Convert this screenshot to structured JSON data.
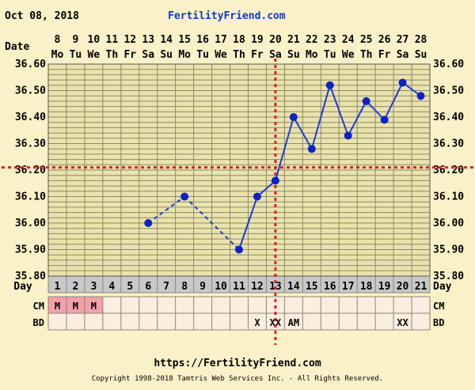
{
  "header": {
    "date": "Oct 08, 2018",
    "site": "FertilityFriend.com"
  },
  "footer": {
    "url": "https://FertilityFriend.com",
    "copyright": "Copyright 1998-2018 Tamtris Web Services Inc. - All Rights Reserved."
  },
  "chart_data": {
    "type": "line",
    "ylim": [
      35.8,
      36.6
    ],
    "y_ticks": [
      "36.60",
      "36.50",
      "36.40",
      "36.30",
      "36.20",
      "36.10",
      "36.00",
      "35.90",
      "35.80"
    ],
    "row_labels": {
      "date": "Date",
      "day": "Day",
      "cm": "CM",
      "bd": "BD"
    },
    "dates": [
      "8",
      "9",
      "10",
      "11",
      "12",
      "13",
      "14",
      "15",
      "16",
      "17",
      "18",
      "19",
      "20",
      "21",
      "22",
      "23",
      "24",
      "25",
      "26",
      "27",
      "28"
    ],
    "weekdays": [
      "Mo",
      "Tu",
      "We",
      "Th",
      "Fr",
      "Sa",
      "Su",
      "Mo",
      "Tu",
      "We",
      "Th",
      "Fr",
      "Sa",
      "Su",
      "Mo",
      "Tu",
      "We",
      "Th",
      "Fr",
      "Sa",
      "Su"
    ],
    "days": [
      1,
      2,
      3,
      4,
      5,
      6,
      7,
      8,
      9,
      10,
      11,
      12,
      13,
      14,
      15,
      16,
      17,
      18,
      19,
      20,
      21
    ],
    "temperatures": [
      null,
      null,
      null,
      null,
      null,
      36.0,
      null,
      36.1,
      null,
      null,
      35.9,
      36.1,
      36.16,
      36.4,
      36.28,
      36.52,
      36.33,
      36.46,
      36.39,
      36.53,
      36.48
    ],
    "dashed_segments": [
      [
        6,
        8
      ],
      [
        8,
        11
      ]
    ],
    "coverline": 36.21,
    "ovulation_day": 13,
    "cm": [
      "M",
      "M",
      "M",
      "",
      "",
      "",
      "",
      "",
      "",
      "",
      "",
      "",
      "",
      "",
      "",
      "",
      "",
      "",
      "",
      "",
      ""
    ],
    "bd": [
      "",
      "",
      "",
      "",
      "",
      "",
      "",
      "",
      "",
      "",
      "",
      "X",
      "XX",
      "AM",
      "",
      "",
      "",
      "",
      "",
      "XX",
      ""
    ],
    "colors": {
      "background": "#fbf1c8",
      "plot_bg": "#eae3aa",
      "grid": "#8a8872",
      "line": "#1f3bd6",
      "marker": "#1020c8",
      "reference": "#e02020",
      "day_row_bg": "#c8c8c8",
      "cm_fill": "#f3a0ac",
      "row_bg": "#fbeee0",
      "site_title": "#0b3ccf"
    }
  }
}
